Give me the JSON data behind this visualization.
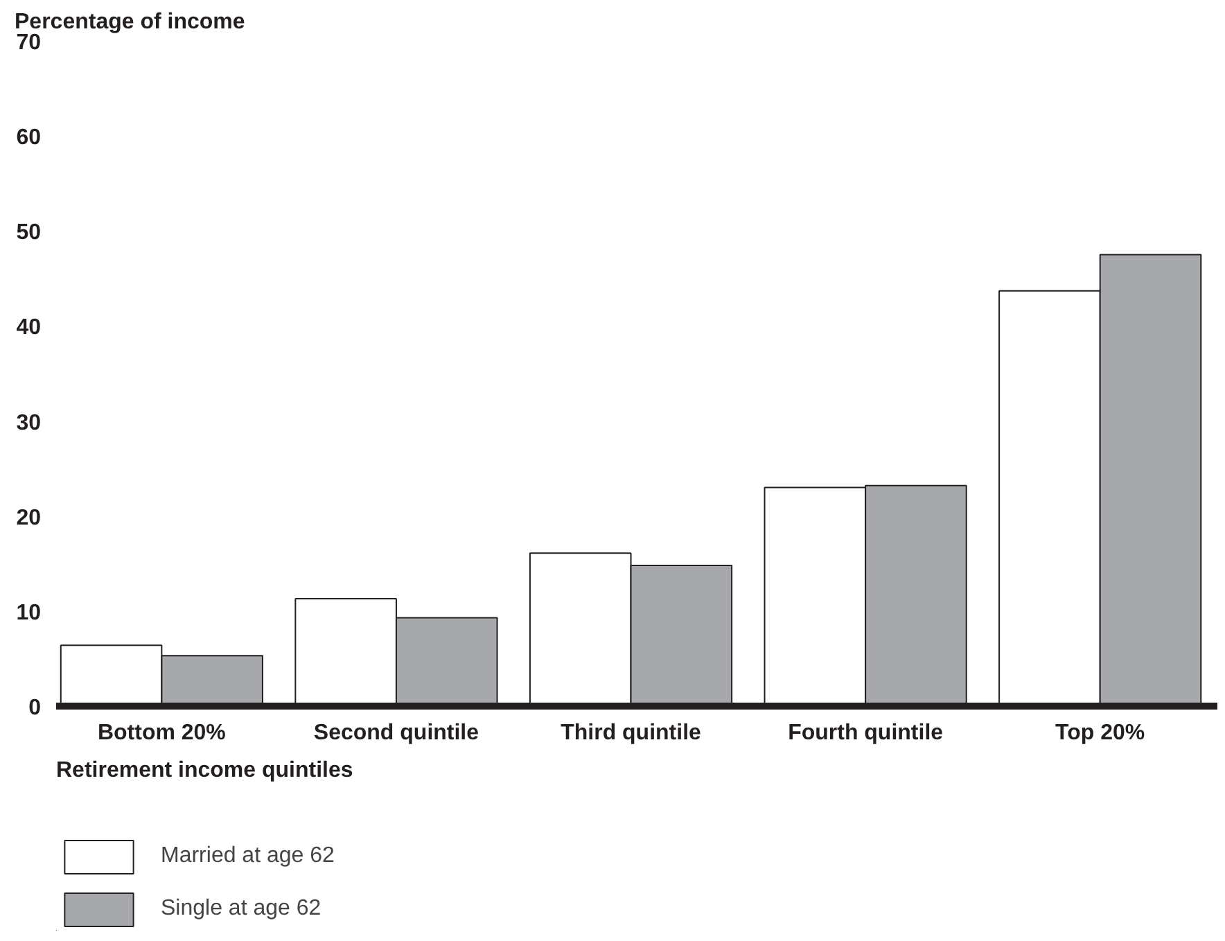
{
  "chart_data": {
    "type": "bar",
    "ylabel": "Percentage of income",
    "xlabel": "Retirement income quintiles",
    "categories": [
      "Bottom 20%",
      "Second quintile",
      "Third quintile",
      "Fourth quintile",
      "Top 20%"
    ],
    "series": [
      {
        "name": "Married at age 62",
        "color": "#ffffff",
        "values": [
          6.4,
          11.3,
          16.1,
          23.0,
          43.7
        ]
      },
      {
        "name": "Single at age 62",
        "color": "#a7a8ac",
        "values": [
          5.3,
          9.3,
          14.8,
          23.2,
          47.5
        ]
      }
    ],
    "ylim": [
      0,
      70
    ],
    "yticks": [
      0,
      10,
      20,
      30,
      40,
      50,
      60,
      70
    ],
    "grid": false,
    "legend": "bottom left"
  }
}
